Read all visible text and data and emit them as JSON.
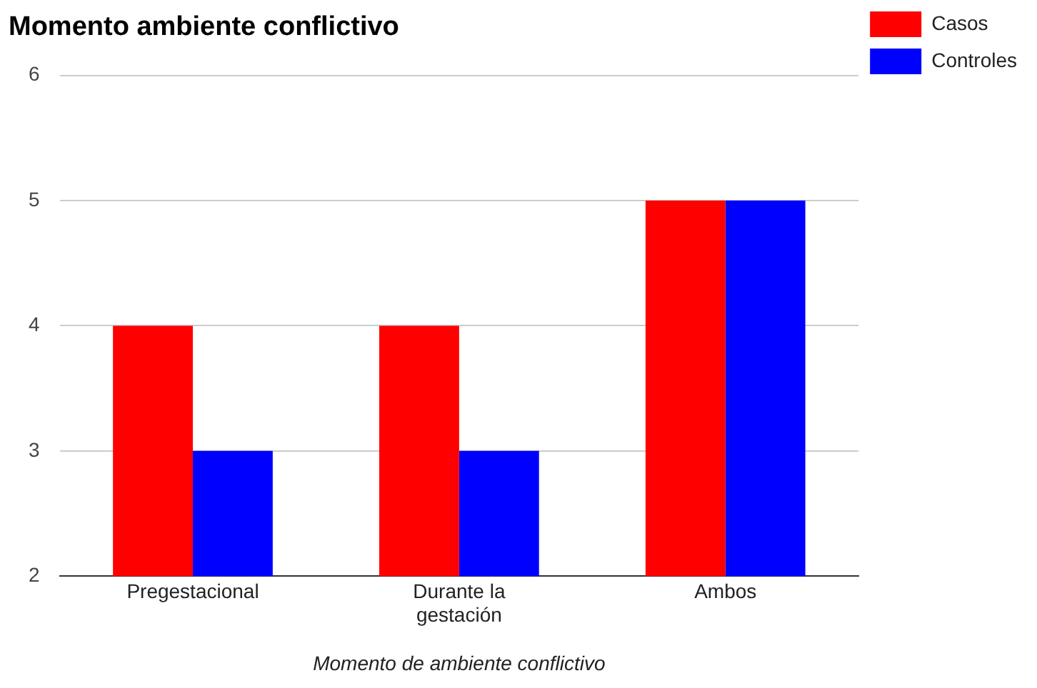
{
  "chart_data": {
    "type": "bar",
    "title": "Momento ambiente conflictivo",
    "xlabel": "Momento de ambiente conflictivo",
    "categories": [
      "Pregestacional",
      "Durante la gestación",
      "Ambos"
    ],
    "series": [
      {
        "name": "Casos",
        "color": "#ff0000",
        "values": [
          4,
          4,
          5
        ]
      },
      {
        "name": "Controles",
        "color": "#0000ff",
        "values": [
          3,
          3,
          5
        ]
      }
    ],
    "ylim": [
      2,
      6
    ],
    "yticks": [
      2,
      3,
      4,
      5,
      6
    ],
    "grid": "y",
    "legend": "top right"
  }
}
